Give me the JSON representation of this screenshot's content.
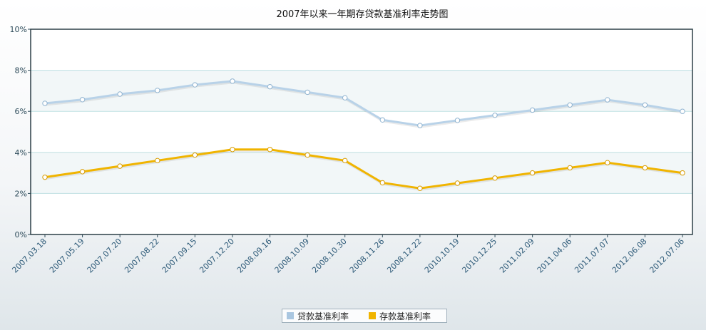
{
  "chart_data": {
    "type": "line",
    "title": "2007年以来一年期存贷款基准利率走势图",
    "categories": [
      "2007.03.18",
      "2007.05.19",
      "2007.07.20",
      "2007.08.22",
      "2007.09.15",
      "2007.12.20",
      "2008.09.16",
      "2008.10.09",
      "2008.10.30",
      "2008.11.26",
      "2008.12.22",
      "2010.10.19",
      "2010.12.25",
      "2011.02.09",
      "2011.04.06",
      "2011.07.07",
      "2012.06.08",
      "2012.07.06"
    ],
    "y_ticks": [
      "0%",
      "2%",
      "4%",
      "6%",
      "8%",
      "10%"
    ],
    "ylim": [
      0,
      10
    ],
    "grid": true,
    "legend_position": "bottom-center",
    "series": [
      {
        "name": "贷款基准利率",
        "color": "#b8d2e8",
        "values": [
          6.39,
          6.57,
          6.84,
          7.02,
          7.29,
          7.47,
          7.2,
          6.93,
          6.66,
          5.58,
          5.31,
          5.56,
          5.81,
          6.06,
          6.31,
          6.56,
          6.31,
          6.0
        ]
      },
      {
        "name": "存款基准利率",
        "color": "#f0b400",
        "values": [
          2.79,
          3.06,
          3.33,
          3.6,
          3.87,
          4.14,
          4.14,
          3.87,
          3.6,
          2.52,
          2.25,
          2.5,
          2.75,
          3.0,
          3.25,
          3.5,
          3.25,
          3.0
        ]
      }
    ]
  }
}
